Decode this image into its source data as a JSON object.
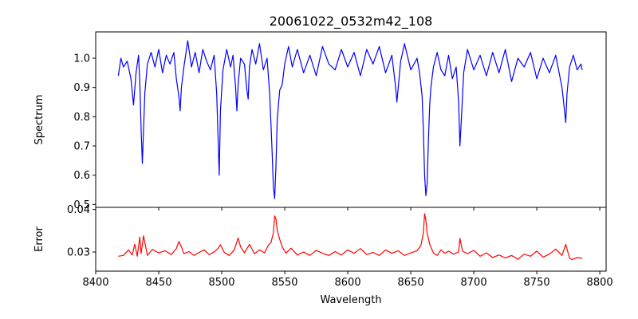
{
  "chart_data": [
    {
      "type": "line",
      "title": "20061022_0532m42_108",
      "xlabel": "",
      "ylabel": "Spectrum",
      "xlim": [
        8400,
        8805
      ],
      "ylim": [
        0.49,
        1.09
      ],
      "xticks": [
        8400,
        8450,
        8500,
        8550,
        8600,
        8650,
        8700,
        8750,
        8800
      ],
      "yticks": [
        0.5,
        0.6,
        0.7,
        0.8,
        0.9,
        1.0
      ],
      "ytick_labels": [
        "0.5",
        "0.6",
        "0.7",
        "0.8",
        "0.9",
        "1.0"
      ],
      "grid": false,
      "series": [
        {
          "color": "#0000ff",
          "x": [
            8418,
            8420,
            8422,
            8425,
            8428,
            8430,
            8432,
            8434,
            8435,
            8436,
            8437,
            8439,
            8441,
            8444,
            8447,
            8450,
            8453,
            8456,
            8459,
            8462,
            8464,
            8466,
            8467,
            8468,
            8470,
            8473,
            8476,
            8479,
            8482,
            8485,
            8488,
            8491,
            8494,
            8496,
            8497,
            8498,
            8499,
            8501,
            8504,
            8507,
            8509,
            8511,
            8512,
            8513,
            8515,
            8518,
            8520,
            8521,
            8522,
            8524,
            8527,
            8530,
            8533,
            8536,
            8538,
            8539,
            8540,
            8541,
            8542,
            8543,
            8544,
            8546,
            8548,
            8550,
            8553,
            8556,
            8560,
            8565,
            8570,
            8575,
            8580,
            8585,
            8590,
            8595,
            8600,
            8605,
            8610,
            8615,
            8620,
            8625,
            8630,
            8635,
            8638,
            8639,
            8642,
            8645,
            8650,
            8655,
            8657,
            8659,
            8660,
            8661,
            8662,
            8663,
            8664,
            8665,
            8666,
            8668,
            8671,
            8674,
            8677,
            8680,
            8683,
            8686,
            8688,
            8689,
            8690,
            8692,
            8695,
            8700,
            8705,
            8710,
            8715,
            8720,
            8725,
            8730,
            8735,
            8740,
            8745,
            8750,
            8755,
            8760,
            8765,
            8770,
            8772,
            8773,
            8774,
            8776,
            8779,
            8782,
            8785,
            8786
          ],
          "y": [
            0.94,
            1.0,
            0.97,
            0.99,
            0.93,
            0.84,
            0.95,
            1.01,
            0.92,
            0.76,
            0.64,
            0.88,
            0.98,
            1.02,
            0.97,
            1.03,
            0.95,
            1.01,
            0.98,
            1.02,
            0.93,
            0.87,
            0.82,
            0.9,
            0.97,
            1.06,
            0.97,
            1.02,
            0.95,
            1.03,
            0.99,
            0.96,
            1.01,
            0.88,
            0.74,
            0.6,
            0.82,
            0.96,
            1.03,
            0.97,
            1.01,
            0.9,
            0.82,
            0.91,
            1.0,
            0.98,
            0.89,
            0.86,
            0.97,
            1.03,
            0.98,
            1.05,
            0.96,
            1.0,
            0.88,
            0.78,
            0.68,
            0.56,
            0.52,
            0.63,
            0.79,
            0.89,
            0.91,
            0.98,
            1.04,
            0.97,
            1.03,
            0.95,
            1.01,
            0.94,
            1.04,
            0.98,
            0.96,
            1.03,
            0.97,
            1.02,
            0.94,
            1.03,
            0.98,
            1.04,
            0.95,
            1.01,
            0.9,
            0.85,
            0.99,
            1.05,
            0.96,
            1.0,
            0.95,
            0.87,
            0.75,
            0.6,
            0.53,
            0.57,
            0.72,
            0.84,
            0.9,
            0.97,
            1.02,
            0.96,
            0.94,
            1.01,
            0.93,
            0.97,
            0.85,
            0.7,
            0.78,
            0.95,
            1.03,
            0.96,
            1.01,
            0.94,
            1.02,
            0.95,
            1.03,
            0.92,
            1.0,
            0.97,
            1.02,
            0.93,
            1.0,
            0.95,
            1.01,
            0.9,
            0.82,
            0.78,
            0.88,
            0.97,
            1.01,
            0.96,
            0.98,
            0.96
          ]
        }
      ]
    },
    {
      "type": "line",
      "title": "",
      "xlabel": "Wavelength",
      "ylabel": "Error",
      "xlim": [
        8400,
        8805
      ],
      "ylim": [
        0.0255,
        0.0405
      ],
      "xticks": [
        8400,
        8450,
        8500,
        8550,
        8600,
        8650,
        8700,
        8750,
        8800
      ],
      "xtick_labels": [
        "8400",
        "8450",
        "8500",
        "8550",
        "8600",
        "8650",
        "8700",
        "8750",
        "8800"
      ],
      "yticks": [
        0.03,
        0.04
      ],
      "ytick_labels": [
        "0.03",
        "0.04"
      ],
      "grid": false,
      "series": [
        {
          "color": "#ff0000",
          "x": [
            8418,
            8422,
            8426,
            8429,
            8431,
            8433,
            8435,
            8436,
            8438,
            8441,
            8445,
            8450,
            8455,
            8460,
            8464,
            8466,
            8468,
            8470,
            8474,
            8478,
            8482,
            8486,
            8490,
            8494,
            8497,
            8499,
            8502,
            8506,
            8510,
            8513,
            8515,
            8518,
            8522,
            8526,
            8530,
            8534,
            8537,
            8539,
            8541,
            8542,
            8543,
            8544,
            8546,
            8548,
            8551,
            8555,
            8560,
            8565,
            8570,
            8575,
            8580,
            8585,
            8590,
            8595,
            8600,
            8605,
            8610,
            8615,
            8620,
            8625,
            8630,
            8635,
            8640,
            8645,
            8650,
            8655,
            8658,
            8660,
            8661,
            8662,
            8663,
            8665,
            8668,
            8671,
            8674,
            8677,
            8680,
            8684,
            8688,
            8689,
            8691,
            8695,
            8700,
            8705,
            8710,
            8715,
            8720,
            8725,
            8730,
            8735,
            8740,
            8745,
            8750,
            8755,
            8760,
            8765,
            8770,
            8773,
            8775,
            8776,
            8778,
            8782,
            8786
          ],
          "y": [
            0.029,
            0.0292,
            0.0305,
            0.0293,
            0.0318,
            0.029,
            0.0335,
            0.0296,
            0.0338,
            0.0292,
            0.0306,
            0.0298,
            0.0303,
            0.0294,
            0.0308,
            0.0325,
            0.0312,
            0.0296,
            0.0301,
            0.0292,
            0.0299,
            0.0305,
            0.0294,
            0.03,
            0.0308,
            0.0317,
            0.0299,
            0.0292,
            0.0305,
            0.0333,
            0.0312,
            0.0298,
            0.0318,
            0.0296,
            0.0305,
            0.0298,
            0.0316,
            0.0322,
            0.0345,
            0.0385,
            0.0378,
            0.0352,
            0.033,
            0.0312,
            0.0297,
            0.0309,
            0.0293,
            0.03,
            0.0292,
            0.0304,
            0.0297,
            0.0292,
            0.0301,
            0.0293,
            0.0305,
            0.0297,
            0.0308,
            0.0294,
            0.0299,
            0.0292,
            0.0305,
            0.0297,
            0.0303,
            0.0292,
            0.0298,
            0.0303,
            0.0315,
            0.0345,
            0.039,
            0.0375,
            0.0345,
            0.0318,
            0.0298,
            0.0292,
            0.0305,
            0.0297,
            0.0302,
            0.0295,
            0.03,
            0.0332,
            0.0302,
            0.0296,
            0.0304,
            0.029,
            0.0298,
            0.0287,
            0.0293,
            0.0286,
            0.0292,
            0.0283,
            0.0295,
            0.029,
            0.0302,
            0.0288,
            0.0295,
            0.0307,
            0.0292,
            0.0318,
            0.0296,
            0.0286,
            0.0282,
            0.0287,
            0.0285
          ]
        }
      ]
    }
  ]
}
